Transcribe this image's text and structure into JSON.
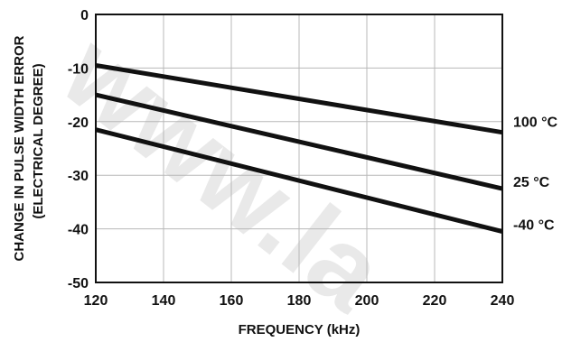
{
  "chart_data": {
    "type": "line",
    "xlabel": "FREQUENCY (kHz)",
    "ylabel_line1": "CHANGE IN PULSE WIDTH ERROR",
    "ylabel_line2": "(ELECTRICAL DEGREE)",
    "xlim": [
      120,
      240
    ],
    "ylim": [
      -50,
      0
    ],
    "x_ticks": [
      120,
      140,
      160,
      180,
      200,
      220,
      240
    ],
    "y_ticks": [
      0,
      -10,
      -20,
      -30,
      -40,
      -50
    ],
    "grid": true,
    "series": [
      {
        "name": "100 °C",
        "x": [
          120,
          240
        ],
        "y": [
          -9.5,
          -22
        ]
      },
      {
        "name": "25 °C",
        "x": [
          120,
          240
        ],
        "y": [
          -15,
          -32.5
        ]
      },
      {
        "name": "-40 °C",
        "x": [
          120,
          240
        ],
        "y": [
          -21.5,
          -40.5
        ]
      }
    ]
  }
}
